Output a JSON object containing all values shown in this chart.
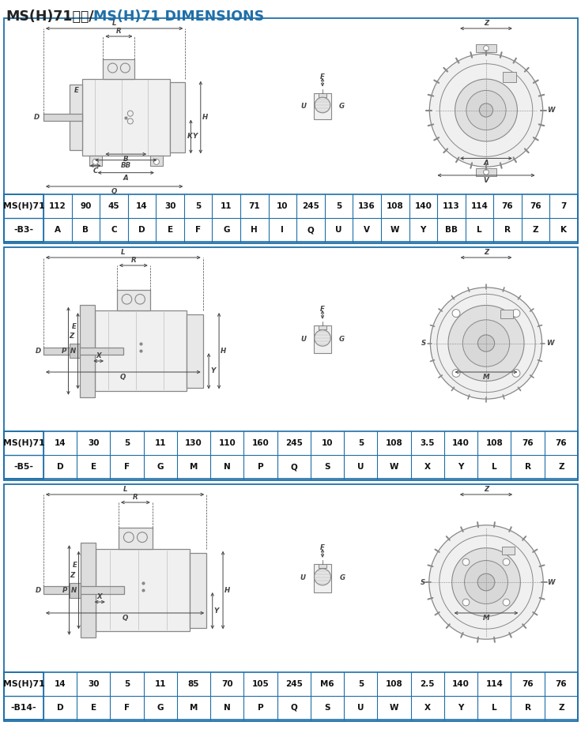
{
  "title_black": "MS(H)71尺寸/",
  "title_blue": "MS(H)71 DIMENSIONS",
  "title_fontsize": 12.5,
  "border_color": "#1f6fa8",
  "section_border": "#1f6fa8",
  "table1": {
    "label": "MS(H)71",
    "sub": "-B3-",
    "values": [
      "112",
      "90",
      "45",
      "14",
      "30",
      "5",
      "11",
      "71",
      "10",
      "245",
      "5",
      "136",
      "108",
      "140",
      "113",
      "114",
      "76",
      "76",
      "7"
    ],
    "letters": [
      "A",
      "B",
      "C",
      "D",
      "E",
      "F",
      "G",
      "H",
      "I",
      "Q",
      "U",
      "V",
      "W",
      "Y",
      "BB",
      "L",
      "R",
      "Z",
      "K"
    ]
  },
  "table2": {
    "label": "MS(H)71",
    "sub": "-B5-",
    "values": [
      "14",
      "30",
      "5",
      "11",
      "130",
      "110",
      "160",
      "245",
      "10",
      "5",
      "108",
      "3.5",
      "140",
      "108",
      "76",
      "76"
    ],
    "letters": [
      "D",
      "E",
      "F",
      "G",
      "M",
      "N",
      "P",
      "Q",
      "S",
      "U",
      "W",
      "X",
      "Y",
      "L",
      "R",
      "Z"
    ]
  },
  "table3": {
    "label": "MS(H)71",
    "sub": "-B14-",
    "values": [
      "14",
      "30",
      "5",
      "11",
      "85",
      "70",
      "105",
      "245",
      "M6",
      "5",
      "108",
      "2.5",
      "140",
      "114",
      "76",
      "76"
    ],
    "letters": [
      "D",
      "E",
      "F",
      "G",
      "M",
      "N",
      "P",
      "Q",
      "S",
      "U",
      "W",
      "X",
      "Y",
      "L",
      "R",
      "Z"
    ]
  },
  "bg_color": "#ffffff",
  "lc": "#555555",
  "drawing_lc": "#888888"
}
